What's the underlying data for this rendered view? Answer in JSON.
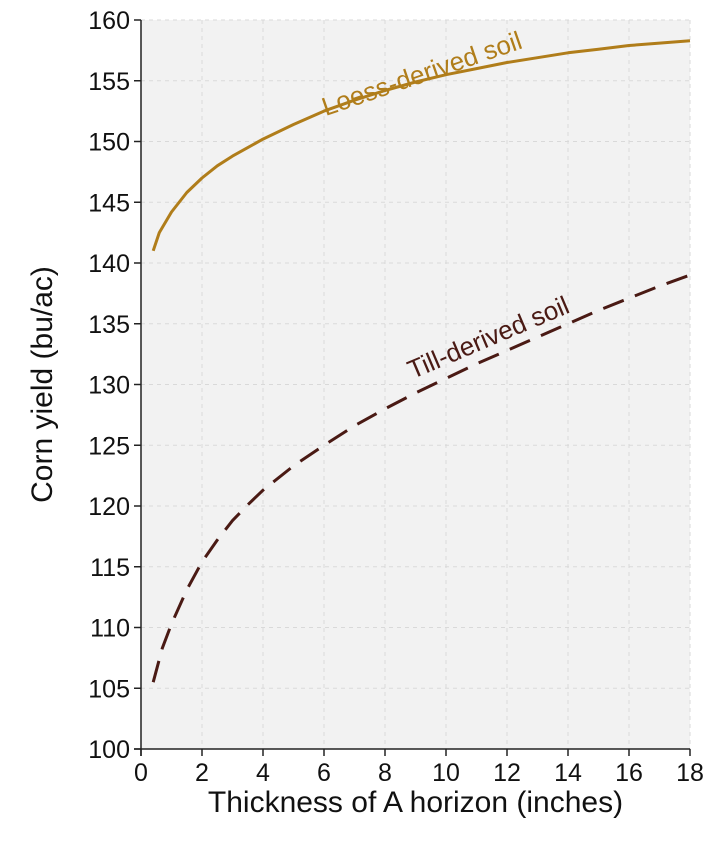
{
  "chart_data": {
    "type": "line",
    "title": "",
    "xlabel": "Thickness of A horizon (inches)",
    "ylabel": "Corn yield (bu/ac)",
    "xlim": [
      0,
      18
    ],
    "ylim": [
      100,
      160
    ],
    "xticks": [
      0,
      2,
      4,
      6,
      8,
      10,
      12,
      14,
      16,
      18
    ],
    "yticks": [
      100,
      105,
      110,
      115,
      120,
      125,
      130,
      135,
      140,
      145,
      150,
      155,
      160
    ],
    "grid": true,
    "legend": "none",
    "background_color": "#f2f2f2",
    "grid_color": "#d9d9d9",
    "series": [
      {
        "name": "Loess-derived soil",
        "color": "#b07d1a",
        "line_style": "solid",
        "x": [
          0.4,
          0.6,
          1,
          1.5,
          2,
          2.5,
          3,
          3.5,
          4,
          5,
          6,
          7,
          8,
          9,
          10,
          11,
          12,
          13,
          14,
          15,
          16,
          17,
          18
        ],
        "y": [
          141,
          142.5,
          144.2,
          145.8,
          147,
          148,
          148.8,
          149.5,
          150.2,
          151.4,
          152.5,
          153.4,
          154.2,
          154.9,
          155.5,
          156,
          156.5,
          156.9,
          157.3,
          157.6,
          157.9,
          158.1,
          158.3
        ]
      },
      {
        "name": "Till-derived soil",
        "color": "#4a1a14",
        "line_style": "dashed",
        "x": [
          0.4,
          0.7,
          1,
          1.5,
          2,
          2.5,
          3,
          3.5,
          4,
          5,
          6,
          7,
          8,
          9,
          10,
          11,
          12,
          13,
          14,
          15,
          16,
          17,
          18
        ],
        "y": [
          105.5,
          108.3,
          110.3,
          113.1,
          115.4,
          117.2,
          118.8,
          120.1,
          121.3,
          123.3,
          125,
          126.6,
          128,
          129.3,
          130.5,
          131.7,
          132.8,
          133.9,
          135,
          136.1,
          137.1,
          138.1,
          139
        ]
      }
    ]
  }
}
